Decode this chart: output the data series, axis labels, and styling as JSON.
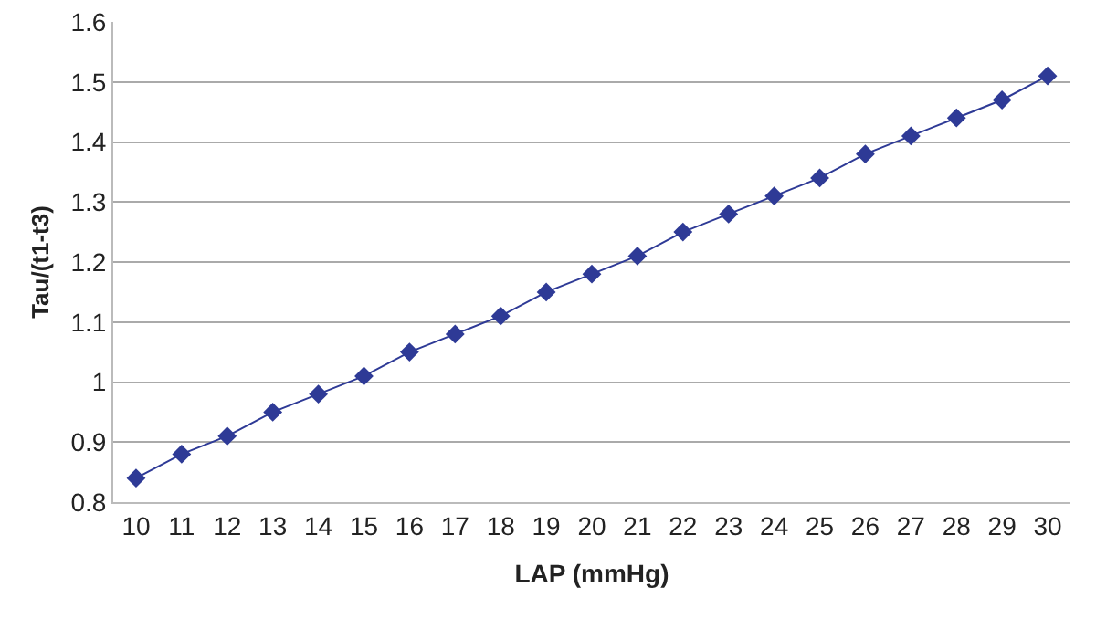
{
  "chart_data": {
    "type": "line",
    "xlabel": "LAP (mmHg)",
    "ylabel": "Tau/(t1-t3)",
    "categories": [
      "10",
      "11",
      "12",
      "13",
      "14",
      "15",
      "16",
      "17",
      "18",
      "19",
      "20",
      "21",
      "22",
      "23",
      "24",
      "25",
      "26",
      "27",
      "28",
      "29",
      "30"
    ],
    "series": [
      {
        "color": "#2e3a96",
        "values": [
          0.84,
          0.88,
          0.91,
          0.95,
          0.98,
          1.01,
          1.05,
          1.08,
          1.11,
          1.15,
          1.18,
          1.21,
          1.25,
          1.28,
          1.31,
          1.34,
          1.38,
          1.41,
          1.44,
          1.47,
          1.51
        ]
      }
    ],
    "ylim": [
      0.8,
      1.6
    ],
    "yticks": [
      0.8,
      0.9,
      {
        "value": 1,
        "label": "1"
      },
      1.1,
      1.2,
      1.3,
      1.4,
      1.5,
      1.6
    ],
    "grid": "y",
    "marker": "diamond",
    "line_style": "solid"
  }
}
